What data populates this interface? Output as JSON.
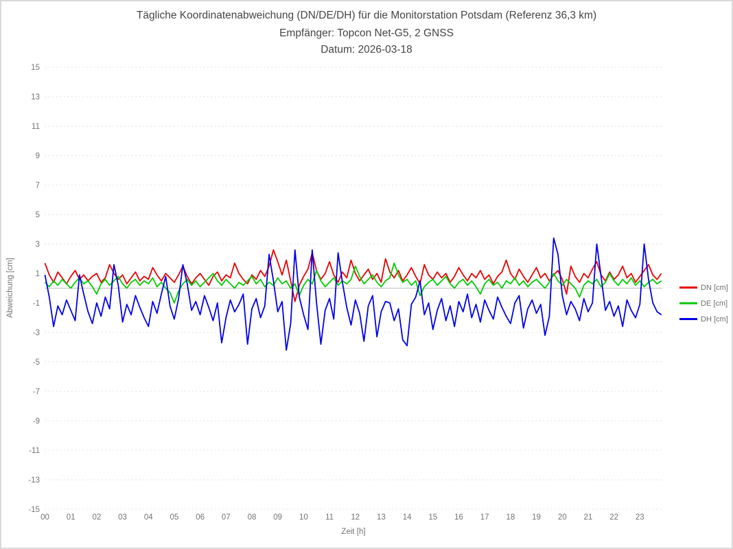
{
  "colors": {
    "grid_dotted": "#d9d9d9",
    "zero_line": "#c9c9c9",
    "tick_text": "#737373",
    "title_text": "#454545",
    "frame_border": "#d9d9d9",
    "dn_red": "#e80000",
    "de_green": "#00cc00",
    "dh_blue": "#0000e8"
  },
  "chart_data": {
    "type": "line",
    "title": "Tägliche Koordinatenabweichung (DN/DE/DH) für die Monitorstation Potsdam (Referenz 36,3 km)",
    "subtitle_receiver": "Empfänger: Topcon Net-G5, 2 GNSS",
    "subtitle_date": "Datum: 2026-03-18",
    "xlabel": "Zeit [h]",
    "ylabel": "Abweichung [cm]",
    "xlim_hours": [
      0,
      24
    ],
    "ylim": [
      -15,
      15
    ],
    "grid": "horizontal dotted lines at odd values, solid light line at 0, no vertical gridlines",
    "legend_position": "right-middle",
    "y_ticks": [
      15,
      13,
      11,
      9,
      7,
      5,
      3,
      1,
      -1,
      -3,
      -5,
      -7,
      -9,
      -11,
      -13,
      -15
    ],
    "x_ticks": [
      "00",
      "01",
      "02",
      "03",
      "04",
      "05",
      "06",
      "07",
      "08",
      "09",
      "10",
      "11",
      "12",
      "13",
      "14",
      "15",
      "16",
      "17",
      "18",
      "19",
      "20",
      "21",
      "22",
      "23"
    ],
    "x_start_hour": 0,
    "x_interval_minutes": 10,
    "series": [
      {
        "name": "DN [cm]",
        "color": "#e80000",
        "values": [
          1.7,
          0.9,
          0.4,
          1.1,
          0.7,
          0.3,
          0.8,
          1.2,
          0.6,
          0.9,
          0.5,
          0.8,
          1.0,
          0.4,
          0.7,
          1.6,
          1.0,
          0.6,
          0.9,
          0.3,
          0.7,
          1.1,
          0.5,
          0.8,
          0.6,
          1.4,
          0.9,
          0.5,
          1.0,
          0.7,
          0.4,
          0.9,
          1.5,
          0.8,
          0.3,
          0.7,
          1.0,
          0.6,
          0.2,
          0.8,
          1.1,
          0.5,
          0.9,
          0.7,
          1.7,
          1.0,
          0.6,
          0.3,
          0.9,
          0.6,
          1.2,
          0.8,
          1.5,
          2.6,
          1.8,
          0.9,
          1.9,
          0.5,
          -0.9,
          0.2,
          0.8,
          1.3,
          2.4,
          1.2,
          0.6,
          1.0,
          1.8,
          0.9,
          0.4,
          1.1,
          0.7,
          1.9,
          1.0,
          0.5,
          0.9,
          1.3,
          0.6,
          1.0,
          0.4,
          2.0,
          1.1,
          0.7,
          1.2,
          0.5,
          0.9,
          1.4,
          0.8,
          0.3,
          1.6,
          0.9,
          0.6,
          1.1,
          0.7,
          1.0,
          0.4,
          0.8,
          1.4,
          0.9,
          0.5,
          1.0,
          0.7,
          1.2,
          0.6,
          0.9,
          0.3,
          0.8,
          1.1,
          1.9,
          1.0,
          0.6,
          1.3,
          0.8,
          0.4,
          0.9,
          1.4,
          0.7,
          1.0,
          0.5,
          0.9,
          1.2,
          0.6,
          -0.4,
          1.5,
          0.8,
          0.4,
          1.0,
          0.7,
          1.3,
          1.8,
          0.9,
          0.5,
          1.1,
          0.6,
          0.9,
          1.5,
          0.7,
          1.0,
          0.4,
          0.8,
          1.2,
          1.6,
          0.9,
          0.6,
          1.0
        ]
      },
      {
        "name": "DE [cm]",
        "color": "#00cc00",
        "values": [
          0.4,
          0.1,
          0.5,
          0.2,
          0.6,
          0.3,
          0.0,
          0.4,
          0.7,
          0.3,
          0.5,
          0.1,
          -0.4,
          0.3,
          0.6,
          0.2,
          0.5,
          0.8,
          0.3,
          0.0,
          0.4,
          0.6,
          0.2,
          0.5,
          0.3,
          0.7,
          0.1,
          0.4,
          0.0,
          -0.3,
          -1.0,
          -0.2,
          0.3,
          0.6,
          0.2,
          0.5,
          0.1,
          0.4,
          0.7,
          1.0,
          0.5,
          0.2,
          0.6,
          0.3,
          0.0,
          0.4,
          0.2,
          0.5,
          0.8,
          0.3,
          0.6,
          0.1,
          0.4,
          0.2,
          0.7,
          0.3,
          0.5,
          0.0,
          0.3,
          -0.5,
          0.2,
          0.6,
          0.3,
          1.2,
          0.5,
          0.1,
          0.4,
          0.7,
          0.2,
          0.5,
          0.3,
          0.6,
          1.5,
          0.8,
          0.3,
          0.6,
          0.9,
          0.4,
          0.1,
          0.5,
          0.7,
          1.7,
          0.9,
          0.4,
          0.6,
          0.2,
          0.5,
          -0.5,
          0.1,
          0.4,
          0.6,
          0.2,
          0.5,
          0.8,
          0.3,
          0.0,
          0.4,
          0.6,
          0.2,
          0.5,
          0.1,
          -0.4,
          0.3,
          0.6,
          0.2,
          0.4,
          0.0,
          0.5,
          0.3,
          0.7,
          0.2,
          0.5,
          0.1,
          0.4,
          0.6,
          0.3,
          0.0,
          0.4,
          1.0,
          0.5,
          0.2,
          0.6,
          0.3,
          0.0,
          -0.6,
          0.2,
          0.5,
          0.3,
          0.6,
          0.1,
          0.4,
          1.0,
          0.5,
          0.2,
          0.6,
          0.3,
          0.7,
          0.2,
          0.5,
          0.1,
          0.4,
          0.6,
          0.3,
          0.5
        ]
      },
      {
        "name": "DH [cm]",
        "color": "#0000e8",
        "values": [
          0.9,
          -0.6,
          -2.6,
          -1.2,
          -1.8,
          -0.8,
          -1.5,
          -2.2,
          0.9,
          -0.4,
          -1.6,
          -2.4,
          -1.0,
          -1.9,
          -0.6,
          -1.4,
          1.6,
          0.2,
          -2.3,
          -1.1,
          -1.8,
          -0.5,
          -1.3,
          -2.0,
          -2.6,
          -0.9,
          -1.7,
          -0.4,
          0.8,
          -1.2,
          -2.1,
          -0.7,
          1.6,
          0.3,
          -1.5,
          -0.9,
          -1.8,
          -0.5,
          -1.3,
          -2.2,
          -1.0,
          -3.7,
          -2.0,
          -0.8,
          -1.6,
          -1.1,
          -0.4,
          -3.8,
          -1.4,
          -0.7,
          -2.0,
          -1.2,
          2.3,
          0.5,
          -1.6,
          -0.9,
          -4.2,
          -2.4,
          2.6,
          -0.6,
          -1.8,
          -2.8,
          2.6,
          -1.0,
          -3.8,
          -1.5,
          -0.7,
          -2.1,
          2.4,
          0.4,
          -1.3,
          -2.5,
          -0.8,
          -1.7,
          -3.6,
          -1.2,
          -0.5,
          -3.3,
          -1.6,
          -0.9,
          -1.0,
          -2.2,
          -1.4,
          -3.5,
          -3.9,
          -1.1,
          -0.6,
          0.5,
          -1.8,
          -1.0,
          -2.8,
          -1.5,
          -0.7,
          -2.2,
          -1.2,
          -2.6,
          -0.9,
          -1.6,
          -0.4,
          -2.0,
          -1.1,
          -2.3,
          -0.8,
          -1.5,
          -2.1,
          -0.6,
          -1.3,
          -1.9,
          -2.4,
          -1.0,
          -0.5,
          -2.7,
          -1.4,
          -0.8,
          -1.7,
          -1.1,
          -3.2,
          -1.9,
          3.4,
          2.3,
          -0.5,
          -1.8,
          -0.9,
          -1.4,
          -2.2,
          -0.7,
          -1.6,
          -1.0,
          3.0,
          0.8,
          -1.5,
          -0.9,
          -1.9,
          -1.2,
          -2.6,
          -0.8,
          -1.5,
          -2.0,
          -1.1,
          3.0,
          0.6,
          -1.0,
          -1.6,
          -1.8
        ]
      }
    ]
  }
}
